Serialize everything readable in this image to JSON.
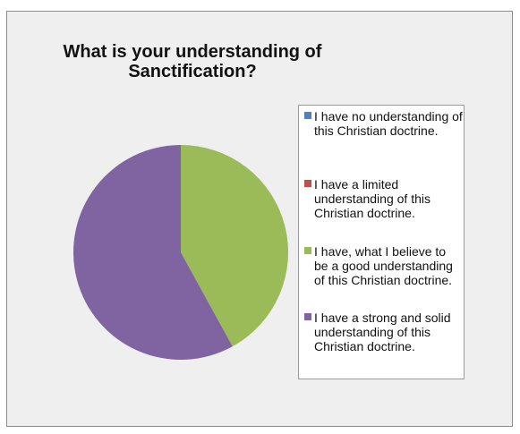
{
  "chart_data": {
    "type": "pie",
    "title_lines": [
      "What is your understanding of",
      "Sanctification?"
    ],
    "series": [
      {
        "name": "I have no understanding of this Christian doctrine.",
        "value": 0,
        "color": "#4f81bd"
      },
      {
        "name": "I have a limited understanding of this Christian doctrine.",
        "value": 0,
        "color": "#c0504d"
      },
      {
        "name": "I have, what I believe to be a good understanding of this Christian doctrine.",
        "value": 42,
        "color": "#9bbb59"
      },
      {
        "name": "I have a strong and solid understanding of this Christian doctrine.",
        "value": 58,
        "color": "#8064a2"
      }
    ],
    "legend_position": "right"
  }
}
